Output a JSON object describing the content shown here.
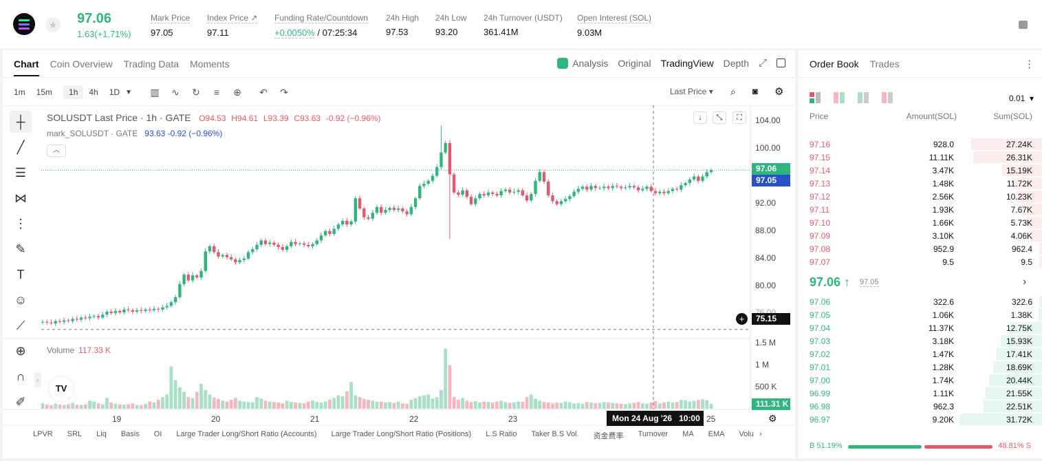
{
  "header": {
    "last_price": "97.06",
    "change": "1.63(+1.71%)",
    "stats": [
      {
        "label": "Mark Price",
        "value": "97.05"
      },
      {
        "label": "Index Price ↗",
        "value": "97.11"
      },
      {
        "label": "Funding Rate/Countdown",
        "value_green": "+0.0050%",
        "value": " / 07:25:34"
      },
      {
        "label": "24h High",
        "value": "97.53"
      },
      {
        "label": "24h Low",
        "value": "93.20"
      },
      {
        "label": "24h Turnover (USDT)",
        "value": "361.41M"
      },
      {
        "label": "Open Interest (SOL)",
        "value": "9.03M"
      }
    ]
  },
  "chart_tabs": [
    "Chart",
    "Coin Overview",
    "Trading Data",
    "Moments"
  ],
  "view_tabs": [
    "Analysis",
    "Original",
    "TradingView",
    "Depth"
  ],
  "intervals": [
    "1m",
    "15m",
    "1h",
    "4h",
    "1D"
  ],
  "price_source": "Last Price",
  "legend": {
    "title": "SOLUSDT Last Price · 1h · GATE",
    "o": "O94.53",
    "h": "H94.61",
    "l": "L93.39",
    "c": "C93.63",
    "chg": "-0.92 (−0.96%)",
    "mark": "mark_SOLUSDT · GATE",
    "mark_value": "93.63 -0.92 (−0.96%)"
  },
  "volume": {
    "label": "Volume",
    "value": "117.33 K",
    "current_badge": "111.31 K",
    "axis": [
      "1.5 M",
      "1 M",
      "500 K"
    ]
  },
  "price_axis": [
    "104.00",
    "100.00",
    "96.00",
    "92.00",
    "88.00",
    "84.00",
    "80.00",
    "76.00"
  ],
  "price_badges": {
    "last": "97.06",
    "mark": "97.05",
    "cross": "75.15"
  },
  "x_axis": [
    "19",
    "20",
    "21",
    "22",
    "23",
    "24",
    "25"
  ],
  "crosshair_date": "Mon 24 Aug '26   10:00",
  "indicators": [
    "LPVR",
    "SRL",
    "Liq",
    "Basis",
    "OI",
    "Large Trader Long/Short Ratio (Accounts)",
    "Large Trader Long/Short Ratio (Positions)",
    "L.S Ratio",
    "Taker B.S Vol.",
    "资金费率",
    "Turnover",
    "MA",
    "EMA",
    "Volu"
  ],
  "colors": {
    "up": "#2fb67f",
    "down": "#e3586d",
    "mark": "#2851c9"
  },
  "chart_data": {
    "type": "candlestick",
    "symbol": "SOLUSDT",
    "interval": "1h",
    "ylim": [
      74,
      106
    ],
    "x_ticks": [
      "19",
      "20",
      "21",
      "22",
      "23",
      "24",
      "25"
    ],
    "close": [
      76.2,
      76.1,
      76.0,
      76.3,
      76.2,
      76.4,
      76.3,
      76.6,
      76.5,
      76.8,
      76.7,
      76.9,
      77.0,
      76.8,
      77.2,
      77.6,
      77.4,
      77.7,
      77.5,
      77.9,
      77.8,
      77.6,
      77.8,
      77.7,
      77.9,
      77.8,
      78.0,
      77.9,
      78.2,
      78.4,
      78.9,
      79.6,
      81.4,
      82.7,
      81.9,
      82.6,
      82.3,
      83.2,
      85.9,
      86.6,
      85.8,
      85.2,
      85.4,
      85.1,
      84.8,
      84.4,
      84.7,
      84.9,
      85.8,
      86.2,
      86.8,
      87.4,
      86.9,
      87.1,
      86.8,
      86.5,
      86.1,
      86.6,
      87.2,
      86.9,
      87.0,
      86.8,
      86.6,
      86.9,
      87.4,
      88.1,
      88.7,
      88.3,
      89.0,
      89.6,
      90.1,
      89.6,
      90.0,
      93.2,
      91.8,
      90.6,
      90.4,
      91.2,
      92.0,
      91.2,
      91.6,
      91.9,
      91.6,
      91.8,
      91.4,
      91.0,
      92.0,
      93.2,
      94.9,
      95.2,
      95.6,
      96.3,
      97.5,
      99.5,
      100.8,
      96.5,
      94.0,
      93.7,
      94.3,
      93.4,
      92.4,
      93.2,
      93.8,
      93.6,
      94.0,
      93.8,
      93.6,
      94.2,
      94.4,
      94.0,
      94.1,
      94.3,
      93.6,
      92.9,
      93.8,
      95.6,
      96.8,
      95.5,
      93.6,
      92.8,
      92.4,
      92.8,
      93.1,
      93.5,
      94.1,
      94.5,
      94.8,
      94.4,
      94.9,
      94.6,
      94.6,
      94.8,
      94.6,
      94.9,
      94.8,
      94.6,
      94.7,
      94.9,
      94.7,
      94.3,
      94.5,
      94.8,
      94.2,
      93.9,
      94.1,
      93.9,
      94.2,
      94.5,
      94.4,
      95.0,
      95.3,
      95.8,
      96.2,
      95.6,
      96.2,
      96.8,
      97.06
    ],
    "volume_k": [
      120,
      90,
      80,
      110,
      95,
      85,
      100,
      130,
      90,
      85,
      95,
      180,
      160,
      120,
      100,
      240,
      140,
      110,
      95,
      90,
      100,
      120,
      85,
      80,
      110,
      160,
      140,
      200,
      260,
      320,
      950,
      640,
      480,
      380,
      260,
      240,
      380,
      560,
      420,
      320,
      250,
      220,
      180,
      160,
      200,
      240,
      180,
      160,
      150,
      140,
      260,
      230,
      180,
      160,
      150,
      140,
      120,
      180,
      150,
      140,
      130,
      120,
      160,
      180,
      150,
      140,
      160,
      200,
      240,
      300,
      280,
      390,
      600,
      300,
      260,
      220,
      200,
      180,
      160,
      160,
      140,
      150,
      130,
      160,
      120,
      110,
      200,
      240,
      280,
      300,
      320,
      230,
      260,
      420,
      1350,
      980,
      260,
      200,
      240,
      180,
      150,
      170,
      140,
      160,
      150,
      140,
      160,
      180,
      150,
      130,
      140,
      160,
      150,
      260,
      320,
      220,
      180,
      150,
      140,
      120,
      140,
      130,
      160,
      150,
      120,
      130,
      110,
      150,
      140,
      120,
      130,
      150,
      140,
      130,
      120,
      110,
      100,
      120,
      130,
      150,
      120,
      110,
      140,
      170,
      120,
      140,
      160,
      140,
      150,
      200,
      190,
      160,
      180,
      200,
      210,
      190,
      111.31
    ],
    "last": 97.06,
    "mark": 97.05,
    "crosshair": 75.15
  },
  "orderbook": {
    "tabs": [
      "Order Book",
      "Trades"
    ],
    "precision": "0.01",
    "headers": [
      "Price",
      "Amount(SOL)",
      "Sum(SOL)"
    ],
    "asks": [
      {
        "price": "97.16",
        "amount": "928.0",
        "sum": "27.24K",
        "depth": 0.86
      },
      {
        "price": "97.15",
        "amount": "11.11K",
        "sum": "26.31K",
        "depth": 0.83
      },
      {
        "price": "97.14",
        "amount": "3.47K",
        "sum": "15.19K",
        "depth": 0.48
      },
      {
        "price": "97.13",
        "amount": "1.48K",
        "sum": "11.72K",
        "depth": 0.37
      },
      {
        "price": "97.12",
        "amount": "2.56K",
        "sum": "10.23K",
        "depth": 0.32
      },
      {
        "price": "97.11",
        "amount": "1.93K",
        "sum": "7.67K",
        "depth": 0.24
      },
      {
        "price": "97.10",
        "amount": "1.66K",
        "sum": "5.73K",
        "depth": 0.18
      },
      {
        "price": "97.09",
        "amount": "3.10K",
        "sum": "4.06K",
        "depth": 0.13
      },
      {
        "price": "97.08",
        "amount": "952.9",
        "sum": "962.4",
        "depth": 0.03
      },
      {
        "price": "97.07",
        "amount": "9.5",
        "sum": "9.5",
        "depth": 0.01
      }
    ],
    "mid_price": "97.06 ↑",
    "mid_mark": "97.05",
    "bids": [
      {
        "price": "97.06",
        "amount": "322.6",
        "sum": "322.6",
        "depth": 0.01
      },
      {
        "price": "97.05",
        "amount": "1.06K",
        "sum": "1.38K",
        "depth": 0.04
      },
      {
        "price": "97.04",
        "amount": "11.37K",
        "sum": "12.75K",
        "depth": 0.4
      },
      {
        "price": "97.03",
        "amount": "3.18K",
        "sum": "15.93K",
        "depth": 0.5
      },
      {
        "price": "97.02",
        "amount": "1.47K",
        "sum": "17.41K",
        "depth": 0.55
      },
      {
        "price": "97.01",
        "amount": "1.28K",
        "sum": "18.69K",
        "depth": 0.59
      },
      {
        "price": "97.00",
        "amount": "1.74K",
        "sum": "20.44K",
        "depth": 0.64
      },
      {
        "price": "96.99",
        "amount": "1.11K",
        "sum": "21.55K",
        "depth": 0.68
      },
      {
        "price": "96.98",
        "amount": "962.3",
        "sum": "22.51K",
        "depth": 0.71
      },
      {
        "price": "96.97",
        "amount": "9.20K",
        "sum": "31.72K",
        "depth": 1.0
      }
    ],
    "buy_ratio": "B 51.19%",
    "sell_ratio": "48.81% S",
    "buy_fraction": 0.5119
  }
}
